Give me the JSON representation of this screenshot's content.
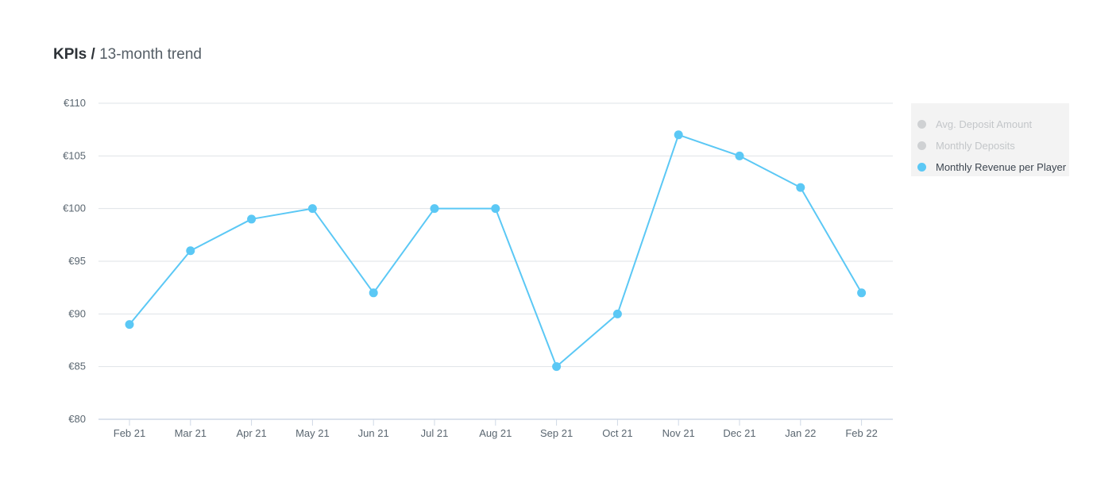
{
  "header": {
    "title_strong": "KPIs",
    "title_sep": "/",
    "title_rest": "13-month trend"
  },
  "colors": {
    "series": "#5bc8f5",
    "grid": "#dfe3e7",
    "axis": "#cfd8e6",
    "tick_text": "#5a6670",
    "legend_inactive": "#cfd1d3"
  },
  "legend": {
    "items": [
      {
        "label": "Avg. Deposit Amount",
        "active": false
      },
      {
        "label": "Monthly Deposits",
        "active": false
      },
      {
        "label": "Monthly Revenue per Player",
        "active": true
      }
    ]
  },
  "chart_data": {
    "type": "line",
    "title": "KPIs / 13-month trend",
    "xlabel": "",
    "ylabel": "",
    "categories": [
      "Feb 21",
      "Mar 21",
      "Apr 21",
      "May 21",
      "Jun 21",
      "Jul 21",
      "Aug 21",
      "Sep 21",
      "Oct 21",
      "Nov 21",
      "Dec 21",
      "Jan 22",
      "Feb 22"
    ],
    "series": [
      {
        "name": "Monthly Revenue per Player",
        "values": [
          89,
          96,
          99,
          100,
          92,
          100,
          100,
          85,
          90,
          107,
          105,
          102,
          92
        ]
      }
    ],
    "ylim": [
      80,
      110
    ],
    "yticks": [
      80,
      85,
      90,
      95,
      100,
      105,
      110
    ],
    "ytick_labels": [
      "€80",
      "€85",
      "€90",
      "€95",
      "€100",
      "€105",
      "€110"
    ],
    "grid": true,
    "legend_position": "right"
  }
}
